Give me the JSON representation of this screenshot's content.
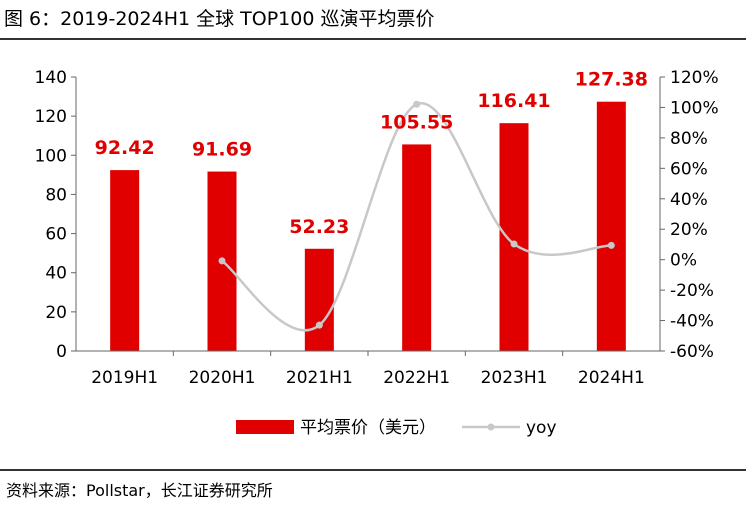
{
  "figure": {
    "title": "图 6：2019-2024H1 全球 TOP100 巡演平均票价",
    "source": "资料来源：Pollstar，长江证券研究所"
  },
  "chart_data": {
    "type": "bar",
    "categories": [
      "2019H1",
      "2020H1",
      "2021H1",
      "2022H1",
      "2023H1",
      "2024H1"
    ],
    "series": [
      {
        "name": "平均票价（美元）",
        "type": "bar",
        "axis": "left",
        "color": "#E00000",
        "values": [
          92.42,
          91.69,
          52.23,
          105.55,
          116.41,
          127.38
        ],
        "labels": [
          "92.42",
          "91.69",
          "52.23",
          "105.55",
          "116.41",
          "127.38"
        ]
      },
      {
        "name": "yoy",
        "type": "line",
        "axis": "right",
        "smooth": true,
        "color": "#C8C8C8",
        "values": [
          null,
          -0.8,
          -43.0,
          102.1,
          10.3,
          9.4
        ]
      }
    ],
    "left_axis": {
      "ylim": [
        0,
        140
      ],
      "ticks": [
        "0",
        "20",
        "40",
        "60",
        "80",
        "100",
        "120",
        "140"
      ]
    },
    "right_axis": {
      "ylim": [
        -60,
        120
      ],
      "ticks": [
        "-60%",
        "-40%",
        "-20%",
        "0%",
        "20%",
        "40%",
        "60%",
        "80%",
        "100%",
        "120%"
      ]
    },
    "data_label_color": "#E00000",
    "grid": false,
    "legend_position": "bottom"
  }
}
